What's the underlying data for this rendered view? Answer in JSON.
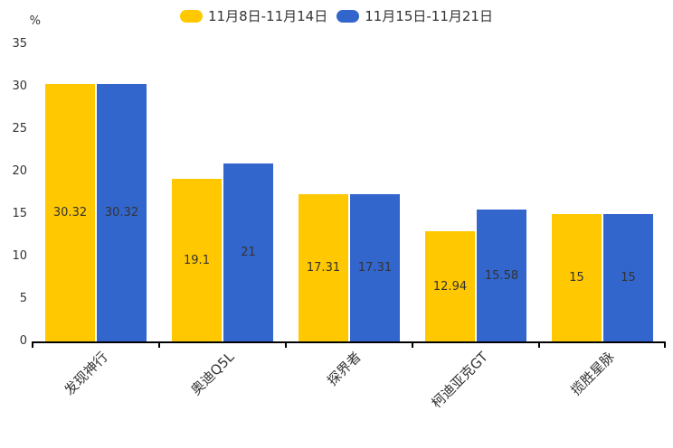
{
  "chart_data": {
    "type": "bar",
    "title": "",
    "unit_label": "%",
    "categories": [
      "发现神行",
      "奥迪Q5L",
      "探界者",
      "柯迪亚克GT",
      "揽胜星脉"
    ],
    "series": [
      {
        "name": "11月8日-11月14日",
        "color": "#FFC800",
        "values": [
          30.32,
          19.1,
          17.31,
          12.94,
          15
        ]
      },
      {
        "name": "11月15日-11月21日",
        "color": "#3366CC",
        "values": [
          30.32,
          21,
          17.31,
          15.58,
          15
        ]
      }
    ],
    "yticks": [
      0,
      5,
      10,
      15,
      20,
      25,
      30,
      35
    ],
    "ylim": [
      0,
      35
    ],
    "grid": false,
    "legend_position": "top",
    "xlabel": "",
    "ylabel": "%",
    "colors": {
      "background": "#FFFFFF",
      "text": "#333333",
      "axis": "#000000"
    }
  }
}
